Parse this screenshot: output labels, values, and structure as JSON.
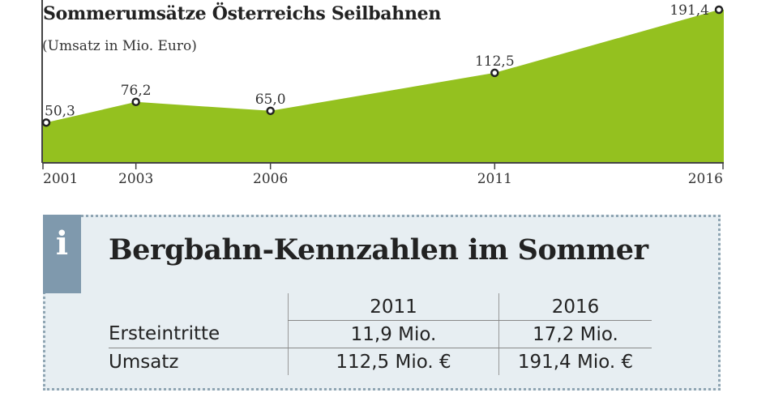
{
  "chart_data": {
    "type": "area",
    "title": "Sommerumsätze Österreichs Seilbahnen",
    "subtitle": "(Umsatz in Mio. Euro)",
    "x": [
      2001,
      2003,
      2006,
      2011,
      2016
    ],
    "x_tick_labels": [
      "2001",
      "2003",
      "2006",
      "2011",
      "2016"
    ],
    "values": [
      50.3,
      76.2,
      65.0,
      112.5,
      191.4
    ],
    "data_labels": [
      "50,3",
      "76,2",
      "65,0",
      "112,5",
      "191,4"
    ],
    "xlim": [
      2001,
      2016
    ],
    "ylim": [
      0,
      200
    ],
    "grid": false,
    "colors": {
      "area": "#94c11f",
      "marker_fill": "#ffffff",
      "marker_stroke": "#222222",
      "axis": "#444444"
    }
  },
  "info_box": {
    "icon": "info-icon",
    "icon_glyph": "i",
    "heading": "Bergbahn-Kennzahlen im Sommer",
    "columns": [
      "2011",
      "2016"
    ],
    "rows": [
      {
        "label": "Ersteintritte",
        "values": [
          "11,9 Mio.",
          "17,2 Mio."
        ]
      },
      {
        "label": "Umsatz",
        "values": [
          "112,5 Mio. €",
          "191,4 Mio. €"
        ]
      }
    ],
    "colors": {
      "background": "#e7eef2",
      "tab": "#7f99ad",
      "border": "#8fa5b3"
    }
  }
}
